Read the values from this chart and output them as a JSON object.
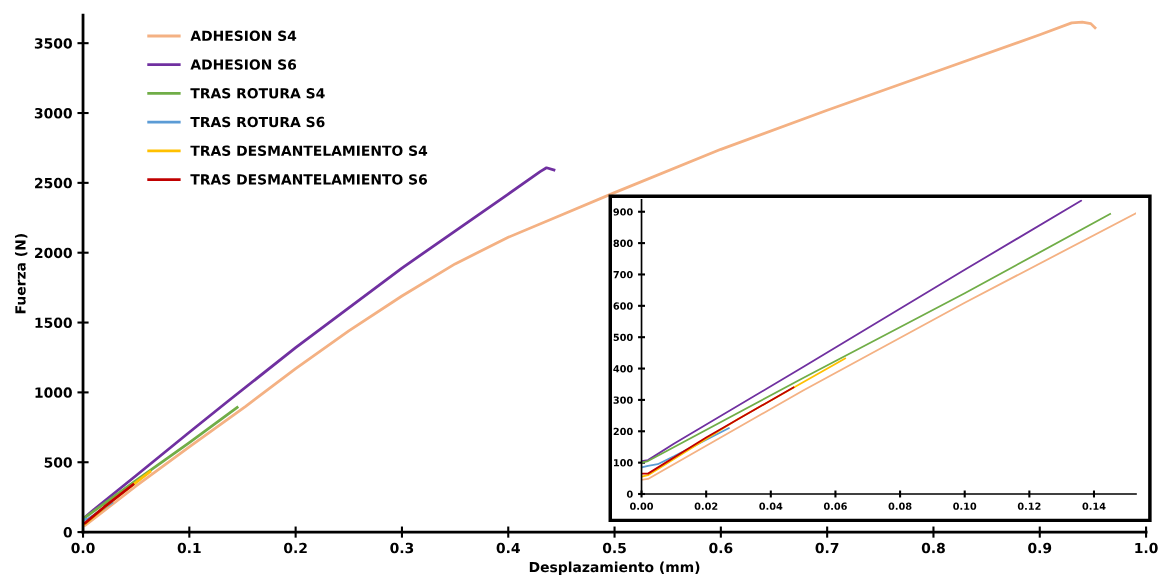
{
  "chart_data": [
    {
      "type": "line",
      "xlabel": "Desplazamiento (mm)",
      "ylabel": "Fuerza (N)",
      "xlim": [
        0,
        1.0
      ],
      "ylim": [
        0,
        3700
      ],
      "xticks": [
        {
          "value": 0,
          "label": "0.0"
        },
        0.1,
        0.2,
        0.3,
        0.4,
        0.5,
        0.6,
        0.7,
        0.8,
        0.9,
        {
          "value": 1.0,
          "label": "1.0"
        }
      ],
      "yticks": [
        0,
        500,
        1000,
        1500,
        2000,
        2500,
        3000,
        3500
      ],
      "grid": false,
      "legend": "top left",
      "marker": "none",
      "line_style": "solid",
      "series": [
        {
          "name": "ADHESION S4",
          "color": "#f4b183",
          "x": [
            0,
            0.002,
            0.05,
            0.1,
            0.153,
            0.2,
            0.25,
            0.3,
            0.35,
            0.4,
            0.45,
            0.5,
            0.6,
            0.7,
            0.8,
            0.9,
            0.93,
            0.94,
            0.948,
            0.952
          ],
          "values": [
            45,
            48,
            330,
            610,
            900,
            1170,
            1440,
            1690,
            1920,
            2110,
            2270,
            2430,
            2740,
            3020,
            3290,
            3560,
            3645,
            3650,
            3640,
            3610
          ]
        },
        {
          "name": "ADHESION S6",
          "color": "#7030a0",
          "x": [
            0,
            0.002,
            0.01,
            0.05,
            0.1,
            0.136,
            0.2,
            0.3,
            0.4,
            0.43,
            0.436,
            0.443
          ],
          "values": [
            105,
            108,
            160,
            405,
            715,
            935,
            1320,
            1890,
            2420,
            2580,
            2608,
            2592
          ]
        },
        {
          "name": "TRAS ROTURA S4",
          "color": "#70ad47",
          "x": [
            0,
            0.002,
            0.05,
            0.1,
            0.145
          ],
          "values": [
            100,
            105,
            370,
            640,
            893
          ]
        },
        {
          "name": "TRAS ROTURA S6",
          "color": "#5b9bd5",
          "x": [
            0,
            0.002,
            0.005,
            0.01,
            0.027
          ],
          "values": [
            85,
            90,
            95,
            120,
            210
          ]
        },
        {
          "name": "TRAS DESMANTELAMIENTO S4",
          "color": "#ffc000",
          "x": [
            0,
            0.002,
            0.03,
            0.063
          ],
          "values": [
            55,
            60,
            240,
            432
          ]
        },
        {
          "name": "TRAS DESMANTELAMIENTO S6",
          "color": "#c00000",
          "x": [
            0,
            0.002,
            0.02,
            0.047
          ],
          "values": [
            65,
            65,
            180,
            340
          ]
        }
      ]
    },
    {
      "type": "line",
      "xlim": [
        0,
        0.153
      ],
      "ylim": [
        0,
        938
      ],
      "xticks": [
        {
          "value": 0,
          "label": "0.00"
        },
        {
          "value": 0.02,
          "label": "0.02"
        },
        {
          "value": 0.04,
          "label": "0.04"
        },
        {
          "value": 0.06,
          "label": "0.06"
        },
        {
          "value": 0.08,
          "label": "0.08"
        },
        {
          "value": 0.1,
          "label": "0.10"
        },
        {
          "value": 0.12,
          "label": "0.12"
        },
        {
          "value": 0.14,
          "label": "0.14"
        }
      ],
      "yticks": [
        0,
        100,
        200,
        300,
        400,
        500,
        600,
        700,
        800,
        900
      ],
      "grid": false,
      "legend": false,
      "marker": "none",
      "line_style": "solid",
      "series": [
        {
          "color": "#f4b183",
          "x": [
            0,
            0.002,
            0.05,
            0.1,
            0.153
          ],
          "values": [
            45,
            48,
            330,
            610,
            895
          ]
        },
        {
          "color": "#7030a0",
          "x": [
            0,
            0.002,
            0.01,
            0.05,
            0.1,
            0.136
          ],
          "values": [
            105,
            108,
            160,
            405,
            715,
            935
          ]
        },
        {
          "color": "#70ad47",
          "x": [
            0,
            0.002,
            0.05,
            0.1,
            0.145
          ],
          "values": [
            100,
            105,
            370,
            640,
            893
          ]
        },
        {
          "color": "#5b9bd5",
          "x": [
            0,
            0.002,
            0.005,
            0.01,
            0.027
          ],
          "values": [
            85,
            90,
            95,
            120,
            210
          ]
        },
        {
          "color": "#ffc000",
          "x": [
            0,
            0.002,
            0.03,
            0.063
          ],
          "values": [
            55,
            60,
            240,
            432
          ]
        },
        {
          "color": "#c00000",
          "x": [
            0,
            0.002,
            0.02,
            0.047
          ],
          "values": [
            65,
            65,
            180,
            340
          ]
        }
      ]
    }
  ]
}
